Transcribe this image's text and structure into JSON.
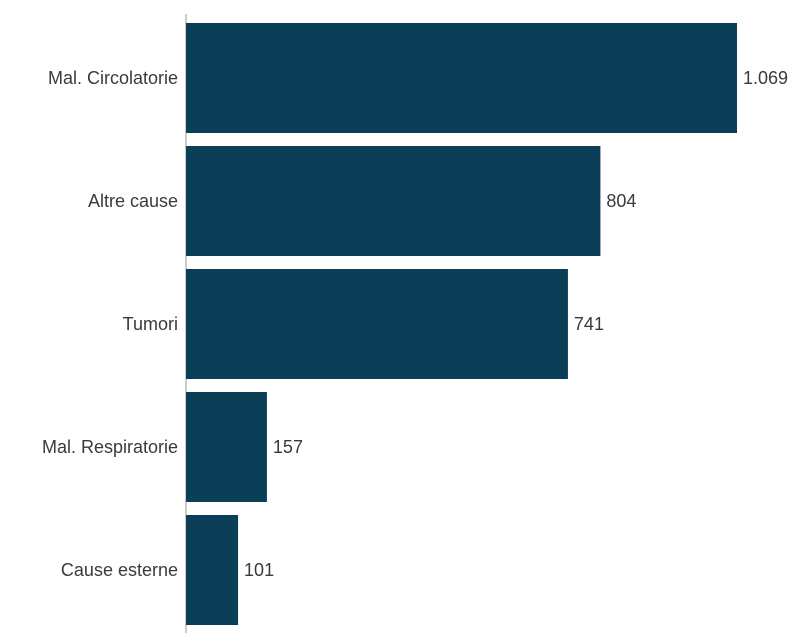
{
  "chart_data": {
    "type": "bar",
    "orientation": "horizontal",
    "categories": [
      "Mal. Circolatorie",
      "Altre cause",
      "Tumori",
      "Mal. Respiratorie",
      "Cause esterne"
    ],
    "values": [
      1069,
      804,
      741,
      157,
      101
    ],
    "value_labels": [
      "1.069",
      "804",
      "741",
      "157",
      "101"
    ],
    "bar_color": "#0b3f57",
    "axis_color": "#9a9a9a",
    "xlim": [
      0,
      1069
    ],
    "grid": false
  }
}
